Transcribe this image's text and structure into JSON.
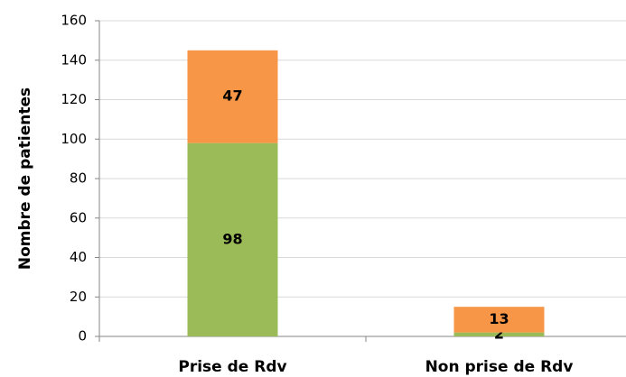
{
  "chart_data": {
    "type": "stacked_bar",
    "y_label": "Nombre de patientes",
    "categories": [
      "Prise de Rdv",
      "Non prise de Rdv"
    ],
    "series": [
      {
        "color": "#9bbb59",
        "values": [
          98,
          2
        ]
      },
      {
        "color": "#f79646",
        "values": [
          47,
          13
        ]
      }
    ],
    "ylim": [
      0,
      160
    ],
    "yticks": [
      0,
      20,
      40,
      60,
      80,
      100,
      120,
      140,
      160
    ],
    "grid": true
  }
}
